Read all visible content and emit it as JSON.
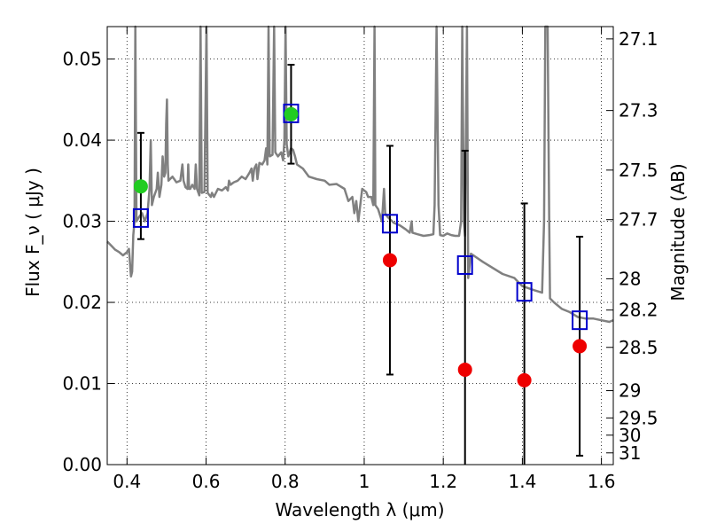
{
  "chart_data": {
    "type": "scatter",
    "xlabel": "Wavelength λ (μm)",
    "ylabel": "Flux F_ν ( μJy )",
    "y2label": "Magnitude (AB)",
    "xlim": [
      0.35,
      1.63
    ],
    "ylim": [
      0.0,
      0.054
    ],
    "grid": true,
    "x_ticks": [
      {
        "value": 0.4,
        "label": "0.4"
      },
      {
        "value": 0.6,
        "label": "0.6"
      },
      {
        "value": 0.8,
        "label": "0.8"
      },
      {
        "value": 1.0,
        "label": "1"
      },
      {
        "value": 1.2,
        "label": "1.2"
      },
      {
        "value": 1.4,
        "label": "1.4"
      },
      {
        "value": 1.6,
        "label": "1.6"
      }
    ],
    "y_ticks": [
      {
        "value": 0.0,
        "label": "0.00"
      },
      {
        "value": 0.01,
        "label": "0.01"
      },
      {
        "value": 0.02,
        "label": "0.02"
      },
      {
        "value": 0.03,
        "label": "0.03"
      },
      {
        "value": 0.04,
        "label": "0.04"
      },
      {
        "value": 0.05,
        "label": "0.05"
      }
    ],
    "y2_ticks": [
      {
        "value": 27.1,
        "label": "27.1"
      },
      {
        "value": 27.3,
        "label": "27.3"
      },
      {
        "value": 27.5,
        "label": "27.5"
      },
      {
        "value": 27.7,
        "label": "27.7"
      },
      {
        "value": 28.0,
        "label": "28"
      },
      {
        "value": 28.2,
        "label": "28.2"
      },
      {
        "value": 28.5,
        "label": "28.5"
      },
      {
        "value": 29.0,
        "label": "29"
      },
      {
        "value": 29.5,
        "label": "29.5"
      },
      {
        "value": 30.0,
        "label": "30"
      },
      {
        "value": 31.0,
        "label": "31"
      }
    ],
    "series": [
      {
        "kind": "line",
        "color": "#808080",
        "points": [
          [
            0.35,
            0.0275
          ],
          [
            0.36,
            0.027
          ],
          [
            0.37,
            0.0265
          ],
          [
            0.38,
            0.0262
          ],
          [
            0.39,
            0.0258
          ],
          [
            0.4,
            0.0262
          ],
          [
            0.405,
            0.0266
          ],
          [
            0.408,
            0.0245
          ],
          [
            0.41,
            0.0232
          ],
          [
            0.413,
            0.0238
          ],
          [
            0.416,
            0.0283
          ],
          [
            0.419,
            0.03
          ],
          [
            0.421,
            0.054
          ],
          [
            0.424,
            0.03
          ],
          [
            0.43,
            0.0305
          ],
          [
            0.438,
            0.031
          ],
          [
            0.445,
            0.03
          ],
          [
            0.452,
            0.031
          ],
          [
            0.457,
            0.034
          ],
          [
            0.46,
            0.04
          ],
          [
            0.463,
            0.032
          ],
          [
            0.468,
            0.033
          ],
          [
            0.475,
            0.034
          ],
          [
            0.478,
            0.036
          ],
          [
            0.482,
            0.033
          ],
          [
            0.487,
            0.0345
          ],
          [
            0.49,
            0.038
          ],
          [
            0.494,
            0.0355
          ],
          [
            0.497,
            0.036
          ],
          [
            0.499,
            0.042
          ],
          [
            0.501,
            0.045
          ],
          [
            0.503,
            0.037
          ],
          [
            0.505,
            0.035
          ],
          [
            0.515,
            0.0355
          ],
          [
            0.525,
            0.0348
          ],
          [
            0.535,
            0.035
          ],
          [
            0.54,
            0.037
          ],
          [
            0.543,
            0.035
          ],
          [
            0.548,
            0.0342
          ],
          [
            0.553,
            0.034
          ],
          [
            0.555,
            0.037
          ],
          [
            0.557,
            0.034
          ],
          [
            0.56,
            0.034
          ],
          [
            0.565,
            0.0345
          ],
          [
            0.571,
            0.034
          ],
          [
            0.574,
            0.037
          ],
          [
            0.577,
            0.034
          ],
          [
            0.583,
            0.0332
          ],
          [
            0.586,
            0.054
          ],
          [
            0.589,
            0.0335
          ],
          [
            0.596,
            0.0336
          ],
          [
            0.601,
            0.054
          ],
          [
            0.604,
            0.0335
          ],
          [
            0.612,
            0.033
          ],
          [
            0.615,
            0.0335
          ],
          [
            0.62,
            0.033
          ],
          [
            0.63,
            0.034
          ],
          [
            0.64,
            0.0338
          ],
          [
            0.65,
            0.0342
          ],
          [
            0.655,
            0.0338
          ],
          [
            0.658,
            0.035
          ],
          [
            0.662,
            0.0345
          ],
          [
            0.67,
            0.0348
          ],
          [
            0.68,
            0.035
          ],
          [
            0.69,
            0.0355
          ],
          [
            0.7,
            0.0352
          ],
          [
            0.71,
            0.036
          ],
          [
            0.715,
            0.0365
          ],
          [
            0.718,
            0.035
          ],
          [
            0.722,
            0.0365
          ],
          [
            0.727,
            0.037
          ],
          [
            0.73,
            0.0352
          ],
          [
            0.735,
            0.0372
          ],
          [
            0.742,
            0.037
          ],
          [
            0.748,
            0.0375
          ],
          [
            0.752,
            0.039
          ],
          [
            0.755,
            0.037
          ],
          [
            0.758,
            0.054
          ],
          [
            0.761,
            0.038
          ],
          [
            0.768,
            0.0382
          ],
          [
            0.772,
            0.054
          ],
          [
            0.775,
            0.0385
          ],
          [
            0.782,
            0.038
          ],
          [
            0.79,
            0.0385
          ],
          [
            0.795,
            0.0375
          ],
          [
            0.798,
            0.04
          ],
          [
            0.801,
            0.054
          ],
          [
            0.804,
            0.0395
          ],
          [
            0.808,
            0.038
          ],
          [
            0.815,
            0.039
          ],
          [
            0.82,
            0.0388
          ],
          [
            0.825,
            0.038
          ],
          [
            0.83,
            0.037
          ],
          [
            0.845,
            0.0365
          ],
          [
            0.86,
            0.0355
          ],
          [
            0.88,
            0.0352
          ],
          [
            0.9,
            0.035
          ],
          [
            0.912,
            0.0345
          ],
          [
            0.93,
            0.0346
          ],
          [
            0.95,
            0.034
          ],
          [
            0.96,
            0.0325
          ],
          [
            0.97,
            0.033
          ],
          [
            0.975,
            0.031
          ],
          [
            0.98,
            0.0325
          ],
          [
            0.985,
            0.03
          ],
          [
            0.99,
            0.032
          ],
          [
            0.995,
            0.034
          ],
          [
            1.0,
            0.0338
          ],
          [
            1.005,
            0.0336
          ],
          [
            1.01,
            0.033
          ],
          [
            1.018,
            0.033
          ],
          [
            1.023,
            0.032
          ],
          [
            1.026,
            0.054
          ],
          [
            1.028,
            0.032
          ],
          [
            1.035,
            0.0315
          ],
          [
            1.045,
            0.03
          ],
          [
            1.05,
            0.034
          ],
          [
            1.053,
            0.031
          ],
          [
            1.06,
            0.0305
          ],
          [
            1.075,
            0.0298
          ],
          [
            1.09,
            0.0295
          ],
          [
            1.105,
            0.029
          ],
          [
            1.115,
            0.0286
          ],
          [
            1.12,
            0.03
          ],
          [
            1.122,
            0.0286
          ],
          [
            1.135,
            0.0284
          ],
          [
            1.15,
            0.0282
          ],
          [
            1.165,
            0.0283
          ],
          [
            1.175,
            0.0284
          ],
          [
            1.178,
            0.032
          ],
          [
            1.183,
            0.054
          ],
          [
            1.188,
            0.032
          ],
          [
            1.192,
            0.0283
          ],
          [
            1.2,
            0.0282
          ],
          [
            1.21,
            0.0285
          ],
          [
            1.22,
            0.0283
          ],
          [
            1.23,
            0.0282
          ],
          [
            1.24,
            0.0282
          ],
          [
            1.245,
            0.03
          ],
          [
            1.248,
            0.054
          ],
          [
            1.252,
            0.03
          ],
          [
            1.255,
            0.0282
          ],
          [
            1.26,
            0.054
          ],
          [
            1.263,
            0.023
          ],
          [
            1.27,
            0.026
          ],
          [
            1.3,
            0.025
          ],
          [
            1.35,
            0.0235
          ],
          [
            1.38,
            0.023
          ],
          [
            1.39,
            0.0225
          ],
          [
            1.4,
            0.022
          ],
          [
            1.43,
            0.0215
          ],
          [
            1.45,
            0.0212
          ],
          [
            1.455,
            0.03
          ],
          [
            1.458,
            0.054
          ],
          [
            1.464,
            0.054
          ],
          [
            1.468,
            0.03
          ],
          [
            1.47,
            0.0205
          ],
          [
            1.48,
            0.02
          ],
          [
            1.5,
            0.0192
          ],
          [
            1.52,
            0.0188
          ],
          [
            1.54,
            0.0182
          ],
          [
            1.56,
            0.018
          ],
          [
            1.58,
            0.018
          ],
          [
            1.6,
            0.0178
          ],
          [
            1.62,
            0.0176
          ],
          [
            1.63,
            0.0178
          ]
        ]
      },
      {
        "kind": "open-square",
        "color": "#0000cc",
        "points": [
          [
            0.435,
            0.0304
          ],
          [
            0.815,
            0.0433
          ],
          [
            1.065,
            0.0297
          ],
          [
            1.255,
            0.0246
          ],
          [
            1.405,
            0.0213
          ],
          [
            1.545,
            0.0178
          ]
        ]
      },
      {
        "kind": "filled-circle",
        "color": "#22cc22",
        "points": [
          [
            0.435,
            0.0343
          ],
          [
            0.815,
            0.0432
          ]
        ]
      },
      {
        "kind": "filled-circle",
        "color": "#ee0000",
        "points": [
          [
            1.065,
            0.0252
          ],
          [
            1.255,
            0.0117
          ],
          [
            1.405,
            0.0104
          ],
          [
            1.545,
            0.0146
          ]
        ]
      },
      {
        "kind": "errorbar",
        "color": "#000000",
        "points": [
          {
            "x": 0.435,
            "y": 0.0343,
            "low": 0.0278,
            "high": 0.0409
          },
          {
            "x": 0.815,
            "y": 0.0432,
            "low": 0.0371,
            "high": 0.0493
          },
          {
            "x": 1.065,
            "y": 0.0252,
            "low": 0.0111,
            "high": 0.0393
          },
          {
            "x": 1.255,
            "y": 0.0117,
            "low": 0.0,
            "high": 0.0387
          },
          {
            "x": 1.405,
            "y": 0.0104,
            "low": 0.0,
            "high": 0.0322
          },
          {
            "x": 1.545,
            "y": 0.0146,
            "low": 0.0011,
            "high": 0.0281
          }
        ]
      }
    ]
  }
}
